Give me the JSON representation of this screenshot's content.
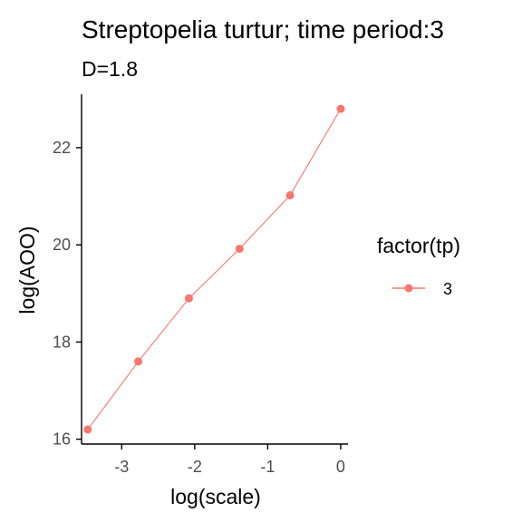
{
  "chart_data": {
    "type": "line",
    "title": "Streptopelia turtur; time period:3",
    "subtitle": "D=1.8",
    "xlabel": "log(scale)",
    "ylabel": "log(AOO)",
    "xlim": [
      -3.55,
      0.1
    ],
    "ylim": [
      15.9,
      23.1
    ],
    "xticks": [
      -3,
      -2,
      -1,
      0
    ],
    "yticks": [
      16,
      18,
      20,
      22
    ],
    "xtick_labels": [
      "-3",
      "-2",
      "-1",
      "0"
    ],
    "ytick_labels": [
      "16",
      "18",
      "20",
      "22"
    ],
    "grid": false,
    "legend": {
      "title": "factor(tp)",
      "placement": "right",
      "entries": [
        "3"
      ]
    },
    "series": [
      {
        "name": "3",
        "color": "#f8766d",
        "x": [
          -3.466,
          -2.773,
          -2.079,
          -1.386,
          -0.693,
          0
        ],
        "y": [
          16.2,
          17.6,
          18.9,
          19.92,
          21.02,
          22.8
        ]
      }
    ]
  }
}
